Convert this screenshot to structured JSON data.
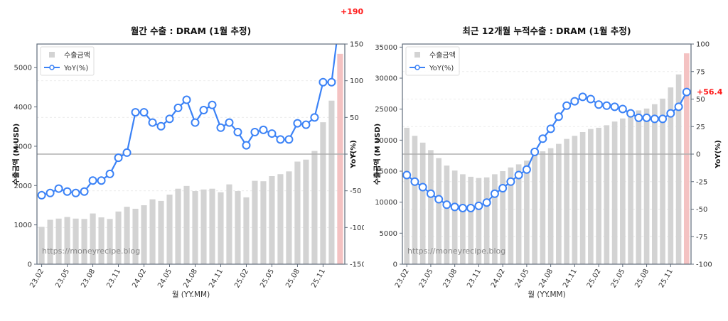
{
  "chart_data": [
    {
      "type": "bar",
      "title": "월간 수출 : DRAM (1월 추정)",
      "xlabel": "월 (YY.MM)",
      "ylabel": "수출금액 (M USD)",
      "y2label": "YoY(%)",
      "ylim": [
        0,
        5600
      ],
      "y2lim": [
        -150,
        150
      ],
      "yticks": [
        0,
        1000,
        2000,
        3000,
        4000,
        5000
      ],
      "y2ticks": [
        -150,
        -100,
        -50,
        0,
        50,
        100,
        150
      ],
      "xtick_labels": [
        "23.02",
        "23.05",
        "23.08",
        "23.11",
        "24.02",
        "24.05",
        "24.08",
        "24.11",
        "25.02",
        "25.05",
        "25.08",
        "25.11"
      ],
      "categories": [
        "23.02",
        "23.03",
        "23.04",
        "23.05",
        "23.06",
        "23.07",
        "23.08",
        "23.09",
        "23.10",
        "23.11",
        "23.12",
        "24.01",
        "24.02",
        "24.03",
        "24.04",
        "24.05",
        "24.06",
        "24.07",
        "24.08",
        "24.09",
        "24.10",
        "24.11",
        "24.12",
        "25.01",
        "25.02",
        "25.03",
        "25.04",
        "25.05",
        "25.06",
        "25.07",
        "25.08",
        "25.09",
        "25.10",
        "25.11",
        "25.12",
        "26.01"
      ],
      "series": [
        {
          "name": "수출금액",
          "type": "bar",
          "axis": "left",
          "color": "#d3d3d3",
          "highlight_last_color": "#f4c2c2",
          "values": [
            950,
            1130,
            1160,
            1200,
            1160,
            1150,
            1290,
            1190,
            1150,
            1340,
            1460,
            1410,
            1500,
            1650,
            1610,
            1770,
            1920,
            1990,
            1860,
            1900,
            1920,
            1830,
            2030,
            1860,
            1700,
            2120,
            2110,
            2240,
            2290,
            2360,
            2610,
            2660,
            2880,
            3610,
            4160,
            5350
          ]
        },
        {
          "name": "YoY(%)",
          "type": "line",
          "axis": "right",
          "color": "#3b82f6",
          "values": [
            -56,
            -53,
            -47,
            -51,
            -53,
            -51,
            -36,
            -36,
            -27,
            -5,
            2,
            57,
            57,
            43,
            38,
            48,
            63,
            74,
            43,
            60,
            67,
            36,
            43,
            30,
            12,
            30,
            33,
            28,
            20,
            20,
            42,
            40,
            50,
            98,
            98,
            190.4
          ]
        }
      ],
      "annotation": "+190.4",
      "legend": [
        "수출금액",
        "YoY(%)"
      ],
      "legend_position": "upper left",
      "hline_y2": 0,
      "watermark": "https://moneyrecipe.blog",
      "grid": "horizontal dashed"
    },
    {
      "type": "bar",
      "title": "최근 12개월 누적수출 : DRAM (1월 추정)",
      "xlabel": "월 (YY.MM)",
      "ylabel": "수출금액 (M USD)",
      "y2label": "YoY(%)",
      "ylim": [
        0,
        35500
      ],
      "y2lim": [
        -100,
        100
      ],
      "yticks": [
        0,
        5000,
        10000,
        15000,
        20000,
        25000,
        30000,
        35000
      ],
      "y2ticks": [
        -100,
        -75,
        -50,
        -25,
        0,
        25,
        50,
        75,
        100
      ],
      "xtick_labels": [
        "23.02",
        "23.05",
        "23.08",
        "23.11",
        "24.02",
        "24.05",
        "24.08",
        "24.11",
        "25.02",
        "25.05",
        "25.08",
        "25.11"
      ],
      "categories": [
        "23.02",
        "23.03",
        "23.04",
        "23.05",
        "23.06",
        "23.07",
        "23.08",
        "23.09",
        "23.10",
        "23.11",
        "23.12",
        "24.01",
        "24.02",
        "24.03",
        "24.04",
        "24.05",
        "24.06",
        "24.07",
        "24.08",
        "24.09",
        "24.10",
        "24.11",
        "24.12",
        "25.01",
        "25.02",
        "25.03",
        "25.04",
        "25.05",
        "25.06",
        "25.07",
        "25.08",
        "25.09",
        "25.10",
        "25.11",
        "25.12",
        "26.01"
      ],
      "series": [
        {
          "name": "수출금액",
          "type": "bar",
          "axis": "left",
          "color": "#d3d3d3",
          "highlight_last_color": "#f4c2c2",
          "values": [
            22000,
            20700,
            19600,
            18400,
            17100,
            15900,
            15100,
            14500,
            14100,
            13900,
            14000,
            14500,
            15000,
            15600,
            16100,
            16700,
            17700,
            18200,
            18700,
            19400,
            20200,
            20700,
            21300,
            21800,
            22000,
            22400,
            23000,
            23500,
            24200,
            24800,
            25100,
            25800,
            26700,
            28500,
            30600,
            34000
          ]
        },
        {
          "name": "YoY(%)",
          "type": "line",
          "axis": "right",
          "color": "#3b82f6",
          "values": [
            -19,
            -25,
            -30,
            -36,
            -41,
            -46,
            -48,
            -49,
            -49,
            -47,
            -44,
            -36,
            -31,
            -25,
            -19,
            -14,
            2,
            14,
            23,
            34,
            44,
            48,
            52,
            50,
            45,
            44,
            43,
            41,
            37,
            33,
            33,
            32,
            32,
            37,
            43,
            56.4
          ]
        }
      ],
      "annotation": "+56.4",
      "legend": [
        "수출금액",
        "YoY(%)"
      ],
      "legend_position": "upper left",
      "hline_y2": 0,
      "watermark": "https://moneyrecipe.blog",
      "grid": "horizontal dashed"
    }
  ]
}
